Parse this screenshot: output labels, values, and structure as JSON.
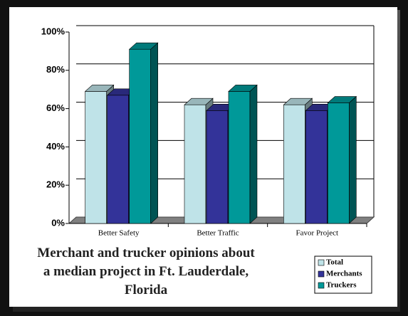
{
  "chart_data": {
    "type": "bar3d",
    "title": "Merchant and trucker opinions about a median project in Ft. Lauderdale, Florida",
    "categories": [
      "Better Safety",
      "Better Traffic",
      "Favor Project"
    ],
    "series": [
      {
        "name": "Total",
        "color": "#bfe3e8",
        "values": [
          69,
          62,
          62
        ]
      },
      {
        "name": "Merchants",
        "color": "#333399",
        "values": [
          67,
          59,
          59
        ]
      },
      {
        "name": "Truckers",
        "color": "#009999",
        "values": [
          91,
          69,
          63
        ]
      }
    ],
    "ylim": [
      0,
      100
    ],
    "yticks": [
      {
        "value": 0,
        "label": "0%"
      },
      {
        "value": 20,
        "label": "20%"
      },
      {
        "value": 40,
        "label": "40%"
      },
      {
        "value": 60,
        "label": "60%"
      },
      {
        "value": 80,
        "label": "80%"
      },
      {
        "value": 100,
        "label": "100%"
      }
    ],
    "grid": true
  }
}
